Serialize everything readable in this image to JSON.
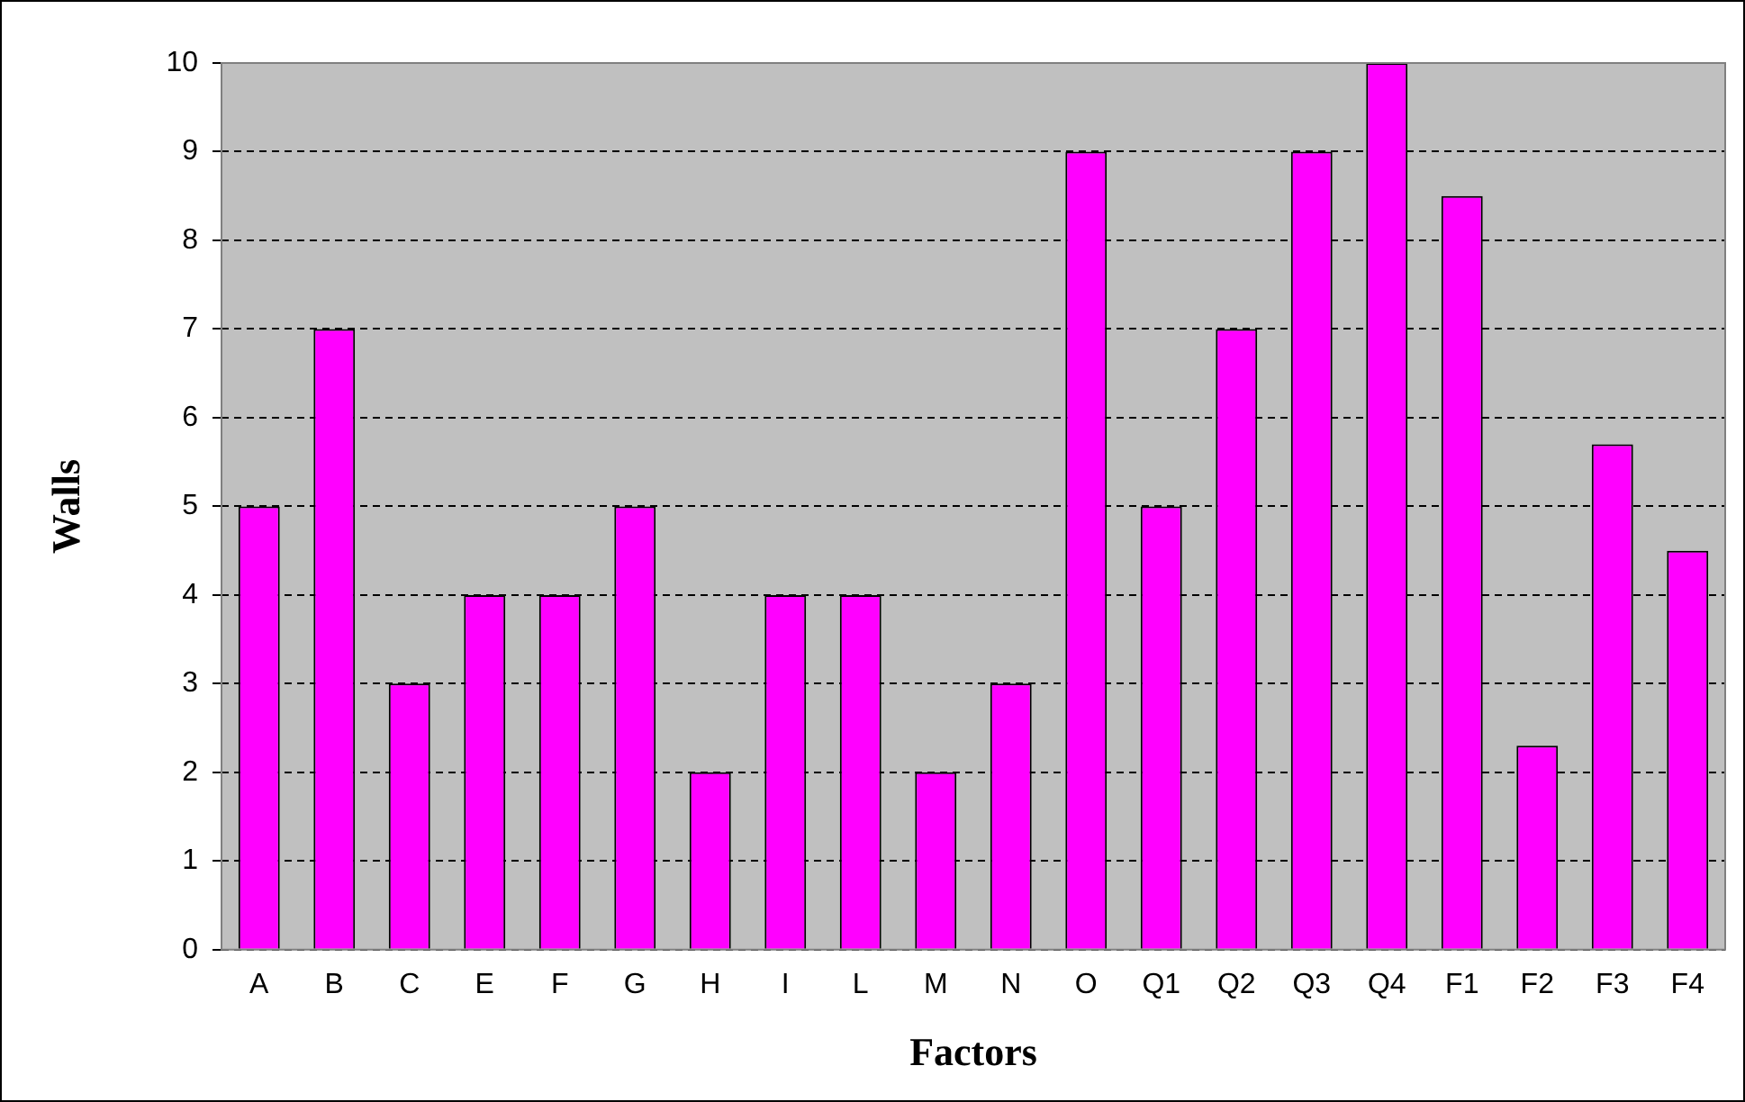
{
  "chart_data": {
    "type": "bar",
    "xlabel": "Factors",
    "ylabel": "Walls",
    "categories": [
      "A",
      "B",
      "C",
      "E",
      "F",
      "G",
      "H",
      "I",
      "L",
      "M",
      "N",
      "O",
      "Q1",
      "Q2",
      "Q3",
      "Q4",
      "F1",
      "F2",
      "F3",
      "F4"
    ],
    "values": [
      5,
      7,
      3,
      4,
      4,
      5,
      2,
      4,
      4,
      2,
      3,
      9,
      5,
      7,
      9,
      10,
      8.5,
      2.3,
      5.7,
      4.5
    ],
    "color": "#ff00ff",
    "ylim": [
      0,
      10
    ],
    "yticks": [
      0,
      1,
      2,
      3,
      4,
      5,
      6,
      7,
      8,
      9,
      10
    ],
    "grid": "y"
  }
}
